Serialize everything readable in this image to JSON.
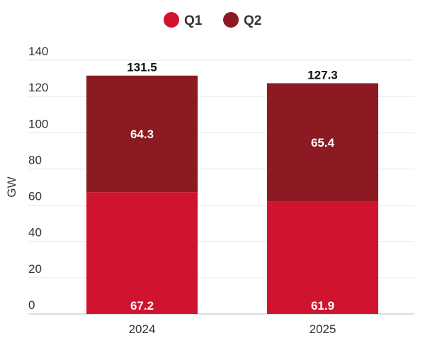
{
  "chart_data": {
    "type": "bar",
    "stacked": true,
    "categories": [
      "2024",
      "2025"
    ],
    "series": [
      {
        "name": "Q1",
        "values": [
          67.2,
          61.9
        ],
        "color": "#d0142f"
      },
      {
        "name": "Q2",
        "values": [
          64.3,
          65.4
        ],
        "color": "#8b1a22"
      }
    ],
    "totals": [
      131.5,
      127.3
    ],
    "ylabel": "GW",
    "xlabel": "",
    "ylim": [
      0,
      140
    ],
    "yticks": [
      0,
      20,
      40,
      60,
      80,
      100,
      120,
      140
    ],
    "grid": true,
    "legend": "top-center"
  }
}
